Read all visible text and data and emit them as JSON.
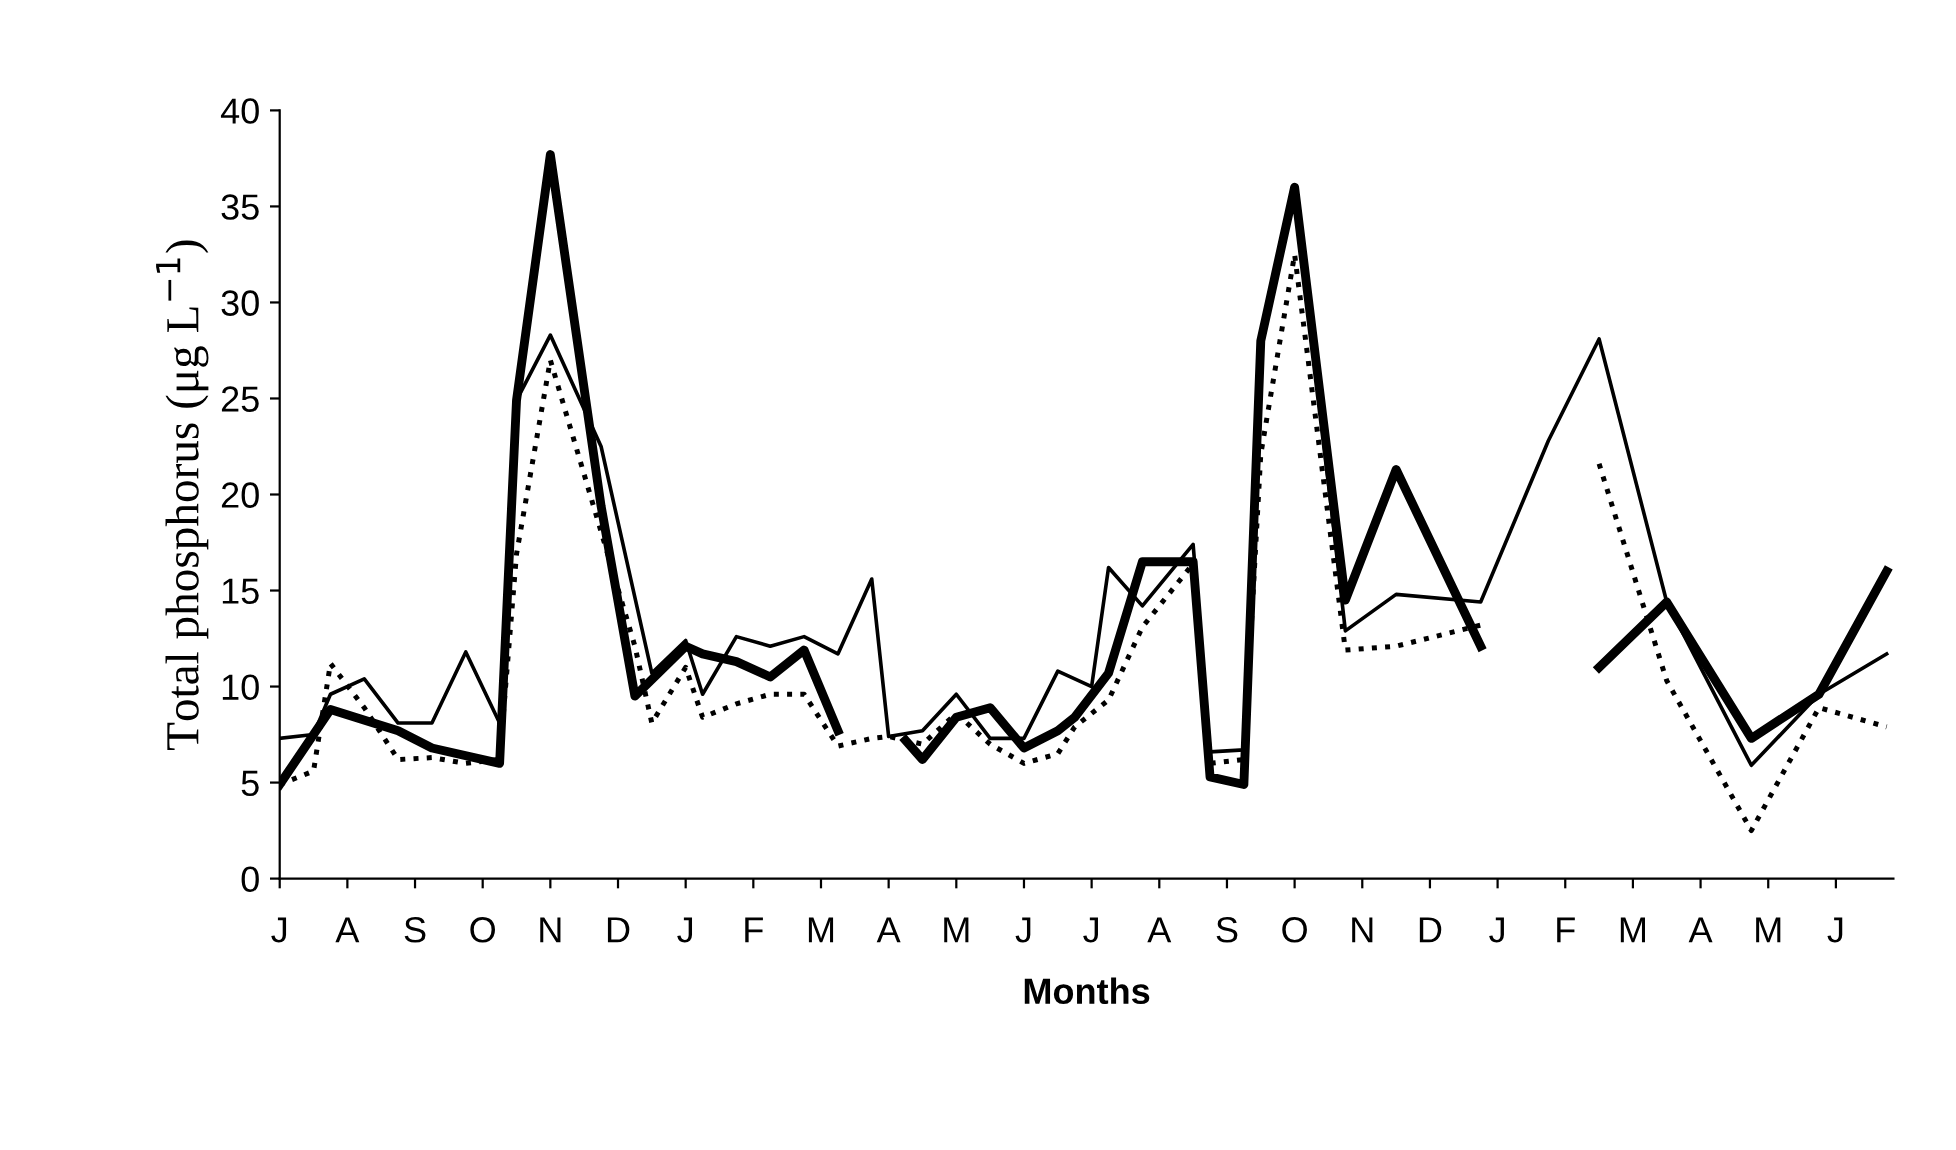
{
  "chart_data": {
    "type": "line",
    "xlabel": "Months",
    "ylabel": "Total phosphorus (μg L$^{−1}$)",
    "categories": [
      "J",
      null,
      null,
      null,
      "A",
      null,
      null,
      null,
      "S",
      null,
      null,
      null,
      "O",
      null,
      null,
      null,
      "N",
      null,
      null,
      null,
      "D",
      null,
      null,
      null,
      "J",
      null,
      null,
      null,
      "F",
      null,
      null,
      null,
      "M",
      null,
      null,
      null,
      "A",
      null,
      null,
      null,
      "M",
      null,
      null,
      null,
      "J",
      null,
      null,
      null,
      "J",
      null,
      null,
      null,
      "A",
      null,
      null,
      null,
      "S",
      null,
      null,
      null,
      "O",
      null,
      null,
      null,
      "N",
      null,
      null,
      null,
      "D",
      null,
      null,
      null,
      "J",
      null,
      null,
      null,
      "F",
      null,
      null,
      null,
      "M",
      null,
      null,
      null,
      "A",
      null,
      null,
      null,
      "M",
      null,
      null,
      null,
      "J",
      null,
      null,
      null
    ],
    "ylim": [
      0,
      40
    ],
    "yticks": [
      0,
      5,
      10,
      15,
      20,
      25,
      30,
      35,
      40
    ],
    "grid": false,
    "legend": false,
    "marker": "none",
    "series": [
      {
        "color": "#000000",
        "line_style": "solid",
        "values": [
          4.9,
          null,
          null,
          8.8,
          null,
          null,
          null,
          7.7,
          null,
          6.8,
          null,
          null,
          null,
          6.0,
          24.9,
          null,
          37.7,
          null,
          null,
          19.4,
          null,
          9.5,
          null,
          null,
          12.1,
          11.7,
          null,
          11.3,
          null,
          10.5,
          null,
          11.9,
          null,
          7.7,
          null,
          null,
          null,
          null,
          null,
          null,
          null,
          null,
          null,
          null,
          null,
          null,
          null,
          null,
          null,
          null,
          null,
          null,
          null,
          null,
          null,
          null,
          null,
          null,
          null,
          null,
          null,
          null,
          null,
          null,
          null,
          null,
          null,
          null,
          null,
          null,
          null,
          null,
          null,
          null,
          null,
          null,
          null,
          null,
          null,
          null,
          null,
          null,
          null,
          null,
          null,
          null,
          null,
          null,
          null,
          null,
          null,
          null,
          null,
          null,
          null,
          null
        ]
      },
      {
        "color": "#000000",
        "line_style": "solid",
        "values": [
          null,
          null,
          null,
          null,
          null,
          null,
          null,
          null,
          null,
          null,
          null,
          null,
          null,
          null,
          null,
          null,
          null,
          null,
          null,
          null,
          null,
          null,
          null,
          null,
          null,
          null,
          null,
          null,
          null,
          null,
          null,
          null,
          null,
          null,
          null,
          null,
          null,
          7.2,
          6.2,
          null,
          8.4,
          null,
          8.9,
          null,
          6.8,
          null,
          7.7,
          8.4,
          null,
          10.7,
          null,
          16.5,
          null,
          null,
          16.5,
          5.3,
          null,
          4.9,
          28.0,
          null,
          36.0,
          null,
          null,
          14.5,
          null,
          null,
          21.3,
          null,
          null,
          null,
          null,
          12.1,
          null,
          null,
          null,
          null,
          null,
          null,
          null,
          null,
          null,
          null,
          null,
          null,
          null,
          null,
          null,
          null,
          null,
          null,
          null,
          null,
          null,
          null,
          null,
          null
        ]
      },
      {
        "color": "#000000",
        "line_style": "solid",
        "values": [
          null,
          null,
          null,
          null,
          null,
          null,
          null,
          null,
          null,
          null,
          null,
          null,
          null,
          null,
          null,
          null,
          null,
          null,
          null,
          null,
          null,
          null,
          null,
          null,
          null,
          null,
          null,
          null,
          null,
          null,
          null,
          null,
          null,
          null,
          null,
          null,
          null,
          null,
          null,
          null,
          null,
          null,
          null,
          null,
          null,
          null,
          null,
          null,
          null,
          null,
          null,
          null,
          null,
          null,
          null,
          null,
          null,
          null,
          null,
          null,
          null,
          null,
          null,
          null,
          null,
          null,
          null,
          null,
          null,
          null,
          null,
          null,
          null,
          null,
          null,
          null,
          null,
          null,
          11.0,
          null,
          null,
          null,
          14.4,
          null,
          null,
          null,
          null,
          7.3,
          null,
          null,
          null,
          9.6,
          null,
          null,
          null,
          16.0
        ]
      },
      {
        "color": "#000000",
        "line_style": "solid",
        "values": [
          7.3,
          null,
          7.5,
          9.6,
          null,
          10.4,
          null,
          8.1,
          null,
          8.1,
          null,
          11.8,
          null,
          8.1,
          24.9,
          null,
          28.3,
          null,
          null,
          22.5,
          null,
          null,
          10.7,
          null,
          12.4,
          9.6,
          null,
          12.6,
          null,
          12.1,
          null,
          12.6,
          null,
          11.7,
          null,
          15.6,
          7.4,
          null,
          7.7,
          null,
          9.6,
          null,
          7.3,
          null,
          7.3,
          null,
          10.8,
          null,
          10.0,
          16.2,
          null,
          14.2,
          null,
          null,
          17.4,
          6.6,
          null,
          6.7,
          27.5,
          null,
          36.0,
          null,
          null,
          12.9,
          null,
          null,
          14.8,
          null,
          null,
          null,
          null,
          14.4,
          null,
          null,
          null,
          22.8,
          null,
          null,
          28.1,
          null,
          null,
          null,
          14.4,
          null,
          null,
          null,
          null,
          5.9,
          null,
          null,
          null,
          9.6,
          null,
          null,
          null,
          11.7
        ]
      },
      {
        "color": "#000000",
        "line_style": "dotted",
        "values": [
          4.9,
          null,
          5.6,
          11.2,
          null,
          8.9,
          null,
          6.2,
          null,
          6.3,
          null,
          6.0,
          null,
          6.2,
          16.9,
          null,
          27.0,
          null,
          null,
          null,
          null,
          12.1,
          8.1,
          null,
          11.0,
          8.4,
          null,
          9.1,
          null,
          9.6,
          null,
          9.6,
          null,
          6.9,
          null,
          7.3,
          7.4,
          null,
          7.0,
          null,
          8.6,
          null,
          7.0,
          null,
          6.0,
          null,
          6.5,
          7.9,
          null,
          9.3,
          null,
          13.1,
          null,
          null,
          16.4,
          6.0,
          null,
          6.2,
          22.1,
          null,
          32.5,
          null,
          null,
          11.9,
          null,
          null,
          12.1,
          null,
          null,
          null,
          null,
          13.2,
          null,
          null,
          null,
          null,
          null,
          null,
          null,
          null,
          null,
          null,
          null,
          null,
          null,
          null,
          null,
          null,
          null,
          null,
          null,
          null,
          null,
          null,
          null,
          null
        ]
      },
      {
        "color": "#000000",
        "line_style": "dotted",
        "values": [
          null,
          null,
          null,
          null,
          null,
          null,
          null,
          null,
          null,
          null,
          null,
          null,
          null,
          null,
          null,
          null,
          null,
          null,
          null,
          null,
          null,
          null,
          null,
          null,
          null,
          null,
          null,
          null,
          null,
          null,
          null,
          null,
          null,
          null,
          null,
          null,
          null,
          null,
          null,
          null,
          null,
          null,
          null,
          null,
          null,
          null,
          null,
          null,
          null,
          null,
          null,
          null,
          null,
          null,
          null,
          null,
          null,
          null,
          null,
          null,
          null,
          null,
          null,
          null,
          null,
          null,
          null,
          null,
          null,
          null,
          null,
          null,
          null,
          null,
          null,
          null,
          null,
          null,
          21.6,
          null,
          null,
          null,
          10.3,
          null,
          null,
          null,
          null,
          2.5,
          null,
          null,
          null,
          8.9,
          null,
          null,
          null,
          7.9
        ]
      }
    ]
  }
}
